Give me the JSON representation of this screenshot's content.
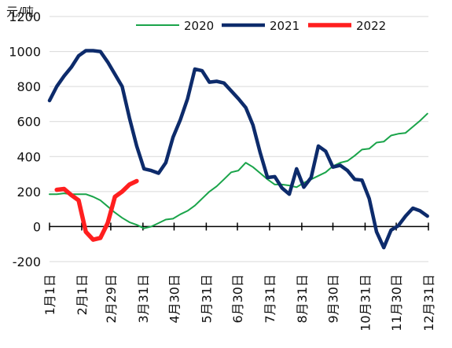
{
  "chart_data": {
    "type": "line",
    "title": "",
    "ylabel": "元/吨",
    "xlabel": "",
    "ylim": [
      -200,
      1200
    ],
    "yticks": [
      -200,
      0,
      200,
      400,
      600,
      800,
      1000,
      1200
    ],
    "xlim": [
      0,
      365
    ],
    "xticks": [
      {
        "day": 0,
        "label": "1月1日"
      },
      {
        "day": 31,
        "label": "2月1日"
      },
      {
        "day": 59,
        "label": "2月29日"
      },
      {
        "day": 90,
        "label": "3月31日"
      },
      {
        "day": 120,
        "label": "4月30日"
      },
      {
        "day": 151,
        "label": "5月31日"
      },
      {
        "day": 181,
        "label": "6月30日"
      },
      {
        "day": 212,
        "label": "7月31日"
      },
      {
        "day": 243,
        "label": "8月31日"
      },
      {
        "day": 273,
        "label": "9月30日"
      },
      {
        "day": 304,
        "label": "10月31日"
      },
      {
        "day": 334,
        "label": "11月30日"
      },
      {
        "day": 365,
        "label": "12月31日"
      }
    ],
    "grid": true,
    "legend_position": "top-right",
    "series": [
      {
        "name": "2020",
        "color": "#1aa44a",
        "points": [
          [
            0,
            185
          ],
          [
            7,
            185
          ],
          [
            14,
            190
          ],
          [
            21,
            185
          ],
          [
            28,
            185
          ],
          [
            35,
            185
          ],
          [
            42,
            170
          ],
          [
            49,
            150
          ],
          [
            56,
            115
          ],
          [
            63,
            80
          ],
          [
            70,
            50
          ],
          [
            77,
            25
          ],
          [
            84,
            10
          ],
          [
            91,
            -10
          ],
          [
            98,
            0
          ],
          [
            105,
            20
          ],
          [
            112,
            40
          ],
          [
            119,
            45
          ],
          [
            126,
            70
          ],
          [
            133,
            90
          ],
          [
            140,
            120
          ],
          [
            147,
            160
          ],
          [
            154,
            200
          ],
          [
            161,
            230
          ],
          [
            168,
            270
          ],
          [
            175,
            310
          ],
          [
            182,
            320
          ],
          [
            189,
            365
          ],
          [
            196,
            340
          ],
          [
            203,
            305
          ],
          [
            210,
            270
          ],
          [
            217,
            240
          ],
          [
            224,
            240
          ],
          [
            231,
            235
          ],
          [
            238,
            225
          ],
          [
            245,
            250
          ],
          [
            252,
            270
          ],
          [
            259,
            290
          ],
          [
            266,
            310
          ],
          [
            273,
            345
          ],
          [
            280,
            365
          ],
          [
            287,
            375
          ],
          [
            294,
            405
          ],
          [
            301,
            440
          ],
          [
            308,
            445
          ],
          [
            315,
            480
          ],
          [
            322,
            485
          ],
          [
            329,
            520
          ],
          [
            336,
            530
          ],
          [
            343,
            535
          ],
          [
            350,
            570
          ],
          [
            357,
            605
          ],
          [
            364,
            645
          ]
        ]
      },
      {
        "name": "2021",
        "color": "#0d2b6b",
        "points": [
          [
            0,
            720
          ],
          [
            7,
            800
          ],
          [
            14,
            860
          ],
          [
            21,
            910
          ],
          [
            28,
            975
          ],
          [
            35,
            1005
          ],
          [
            42,
            1005
          ],
          [
            49,
            1000
          ],
          [
            56,
            940
          ],
          [
            63,
            870
          ],
          [
            70,
            800
          ],
          [
            77,
            620
          ],
          [
            84,
            460
          ],
          [
            91,
            330
          ],
          [
            98,
            320
          ],
          [
            105,
            305
          ],
          [
            112,
            365
          ],
          [
            119,
            510
          ],
          [
            126,
            610
          ],
          [
            133,
            730
          ],
          [
            140,
            900
          ],
          [
            147,
            890
          ],
          [
            154,
            825
          ],
          [
            161,
            830
          ],
          [
            168,
            820
          ],
          [
            175,
            775
          ],
          [
            182,
            730
          ],
          [
            189,
            680
          ],
          [
            196,
            580
          ],
          [
            203,
            420
          ],
          [
            210,
            280
          ],
          [
            217,
            285
          ],
          [
            224,
            220
          ],
          [
            231,
            185
          ],
          [
            238,
            330
          ],
          [
            245,
            225
          ],
          [
            252,
            280
          ],
          [
            259,
            460
          ],
          [
            266,
            430
          ],
          [
            273,
            340
          ],
          [
            280,
            350
          ],
          [
            287,
            320
          ],
          [
            294,
            270
          ],
          [
            301,
            265
          ],
          [
            308,
            160
          ],
          [
            315,
            -30
          ],
          [
            322,
            -120
          ],
          [
            329,
            -20
          ],
          [
            336,
            5
          ],
          [
            343,
            60
          ],
          [
            350,
            105
          ],
          [
            357,
            90
          ],
          [
            364,
            60
          ]
        ]
      },
      {
        "name": "2022",
        "color": "#ff1f1f",
        "points": [
          [
            7,
            210
          ],
          [
            14,
            215
          ],
          [
            21,
            180
          ],
          [
            28,
            150
          ],
          [
            35,
            -30
          ],
          [
            42,
            -75
          ],
          [
            49,
            -65
          ],
          [
            56,
            20
          ],
          [
            63,
            170
          ],
          [
            70,
            200
          ],
          [
            77,
            240
          ],
          [
            84,
            260
          ]
        ]
      }
    ]
  }
}
